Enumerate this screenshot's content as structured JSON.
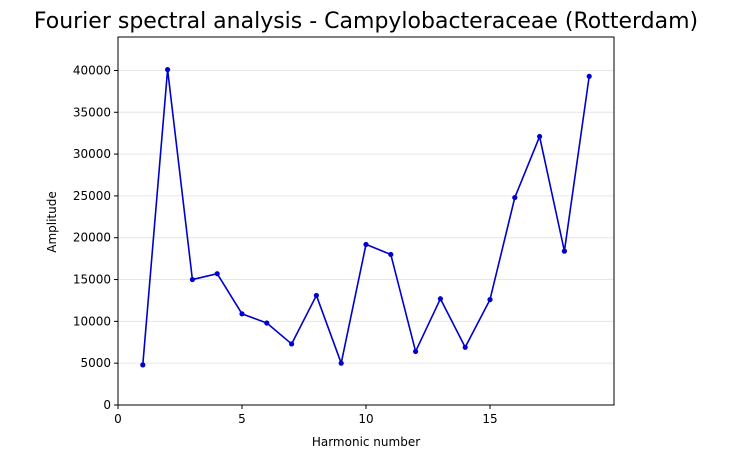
{
  "chart_data": {
    "type": "line",
    "title": "Fourier spectral analysis - Campylobacteraceae (Rotterdam)",
    "xlabel": "Harmonic number",
    "ylabel": "Amplitude",
    "xlim": [
      0,
      20
    ],
    "ylim": [
      0,
      44000
    ],
    "xticks": [
      0,
      5,
      10,
      15
    ],
    "yticks": [
      0,
      5000,
      10000,
      15000,
      20000,
      25000,
      30000,
      35000,
      40000
    ],
    "grid": "horizontal",
    "line_color": "#0000cc",
    "series": [
      {
        "x": [
          1,
          2,
          3,
          4,
          5,
          6,
          7,
          8,
          9,
          10,
          11,
          12,
          13,
          14,
          15,
          16,
          17,
          18,
          19
        ],
        "values": [
          4800,
          40100,
          15000,
          15700,
          10900,
          9800,
          7300,
          13100,
          5000,
          19200,
          18000,
          6400,
          12700,
          6900,
          12600,
          24800,
          32100,
          18400,
          39300
        ]
      }
    ]
  }
}
